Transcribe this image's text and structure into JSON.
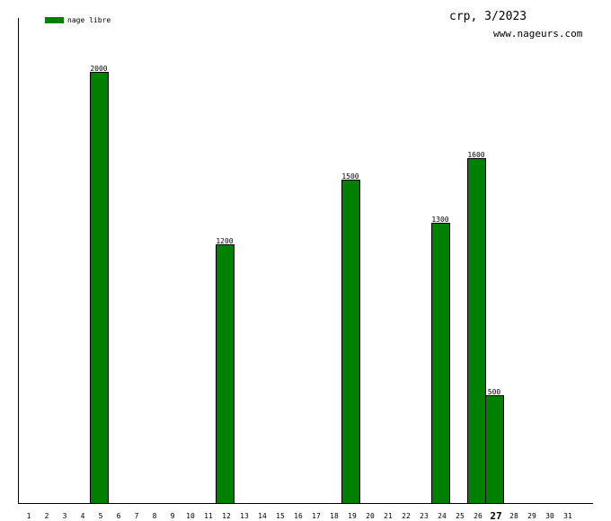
{
  "header": {
    "title": "crp, 3/2023",
    "site": "www.nageurs.com"
  },
  "legend": {
    "label": "nage libre",
    "color": "#008000"
  },
  "chart_data": {
    "type": "bar",
    "categories": [
      "1",
      "2",
      "3",
      "4",
      "5",
      "6",
      "7",
      "8",
      "9",
      "10",
      "11",
      "12",
      "13",
      "14",
      "15",
      "16",
      "17",
      "18",
      "19",
      "20",
      "21",
      "22",
      "23",
      "24",
      "25",
      "26",
      "27",
      "28",
      "29",
      "30",
      "31"
    ],
    "highlight_category": "27",
    "series": [
      {
        "name": "nage libre",
        "color": "#008000",
        "points": [
          {
            "x": "5",
            "value": 2000,
            "label": "2000"
          },
          {
            "x": "12",
            "value": 1200,
            "label": "1200"
          },
          {
            "x": "19",
            "value": 1500,
            "label": "1500"
          },
          {
            "x": "24",
            "value": 1300,
            "label": "1300"
          },
          {
            "x": "26",
            "value": 1600,
            "label": "1600"
          },
          {
            "x": "27",
            "value": 500,
            "label": "500"
          }
        ]
      }
    ],
    "ylim": [
      0,
      2250
    ],
    "grid": false,
    "legend_position": "top-left"
  }
}
